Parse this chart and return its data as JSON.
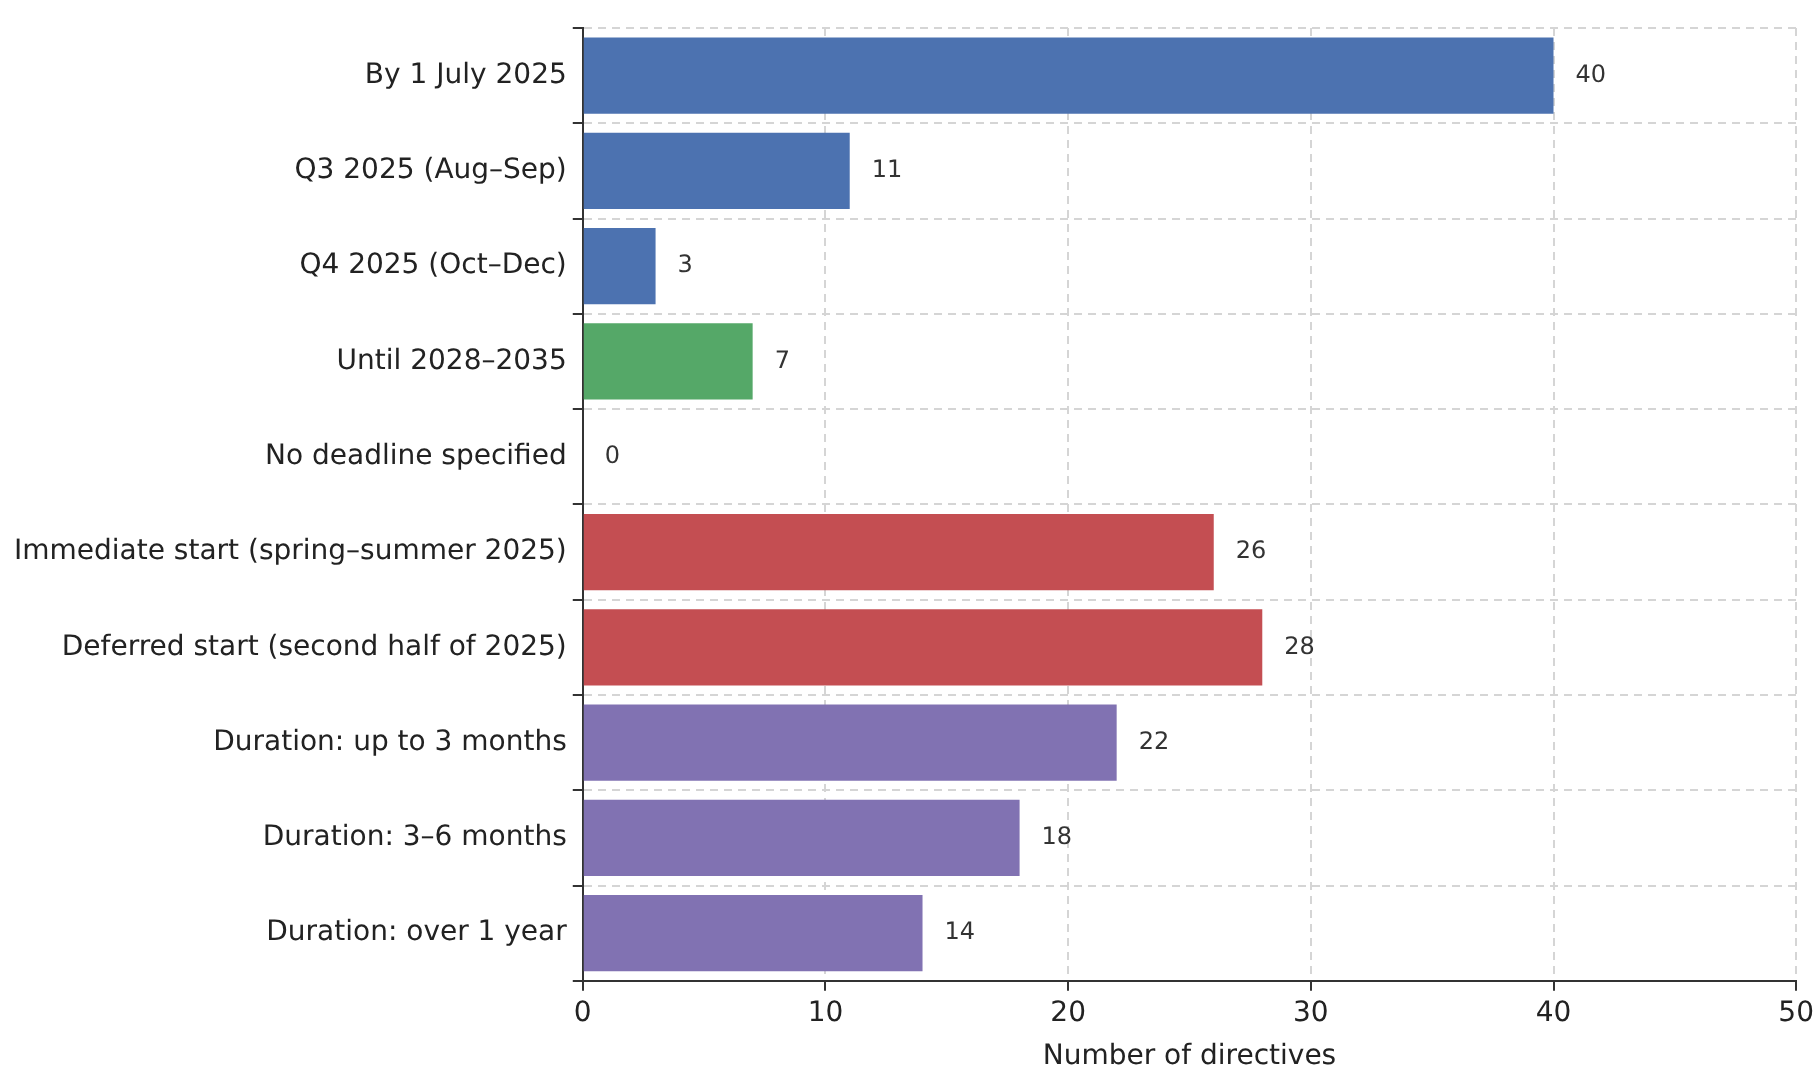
{
  "chart_data": {
    "type": "bar",
    "orientation": "horizontal",
    "xlabel": "Number of directives",
    "categories": [
      "By 1 July 2025",
      "Q3 2025 (Aug–Sep)",
      "Q4 2025 (Oct–Dec)",
      "Until 2028–2035",
      "No deadline specified",
      "Immediate start (spring–summer 2025)",
      "Deferred start (second half of 2025)",
      "Duration: up to 3 months",
      "Duration: 3–6 months",
      "Duration: over 1 year"
    ],
    "values": [
      40,
      11,
      3,
      7,
      0,
      26,
      28,
      22,
      18,
      14
    ],
    "colors": [
      "#4c72b0",
      "#4c72b0",
      "#4c72b0",
      "#55a868",
      "#4c72b0",
      "#c44e52",
      "#c44e52",
      "#8172b2",
      "#8172b2",
      "#8172b2"
    ],
    "xlim": [
      0,
      50
    ],
    "xticks": [
      0,
      10,
      20,
      30,
      40,
      50
    ],
    "grid": true,
    "data_labels": true
  }
}
